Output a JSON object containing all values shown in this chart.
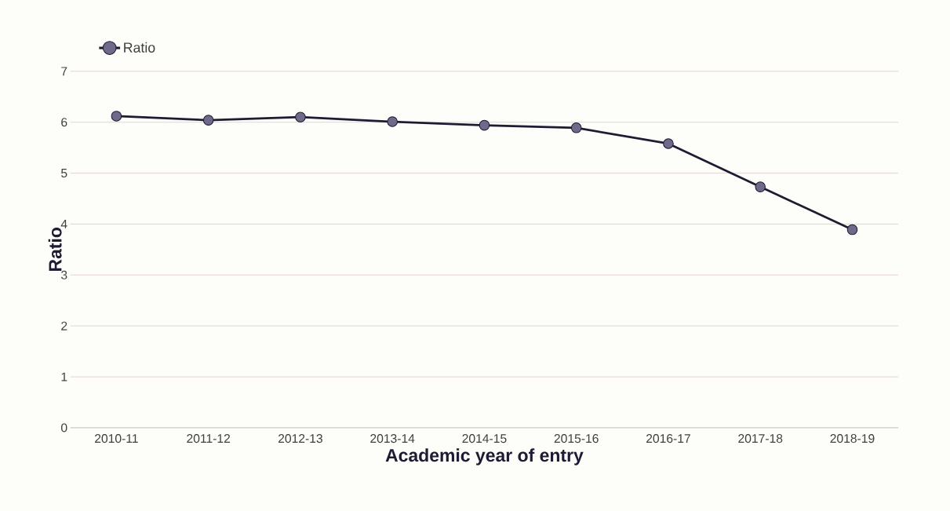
{
  "chart_data": {
    "type": "line",
    "xlabel": "Academic year of entry",
    "ylabel": "Ratio",
    "categories": [
      "2010-11",
      "2011-12",
      "2012-13",
      "2013-14",
      "2014-15",
      "2015-16",
      "2016-17",
      "2017-18",
      "2018-19"
    ],
    "series": [
      {
        "name": "Ratio",
        "color": "#1f1b33",
        "values": [
          6.12,
          6.04,
          6.1,
          6.01,
          5.94,
          5.89,
          5.58,
          4.73,
          3.89
        ]
      }
    ],
    "ylim": [
      0,
      7
    ],
    "yticks": [
      0,
      1,
      2,
      3,
      4,
      5,
      6,
      7
    ],
    "grid": "y",
    "legend": "top left",
    "marker": "circle",
    "line_style": "solid"
  }
}
